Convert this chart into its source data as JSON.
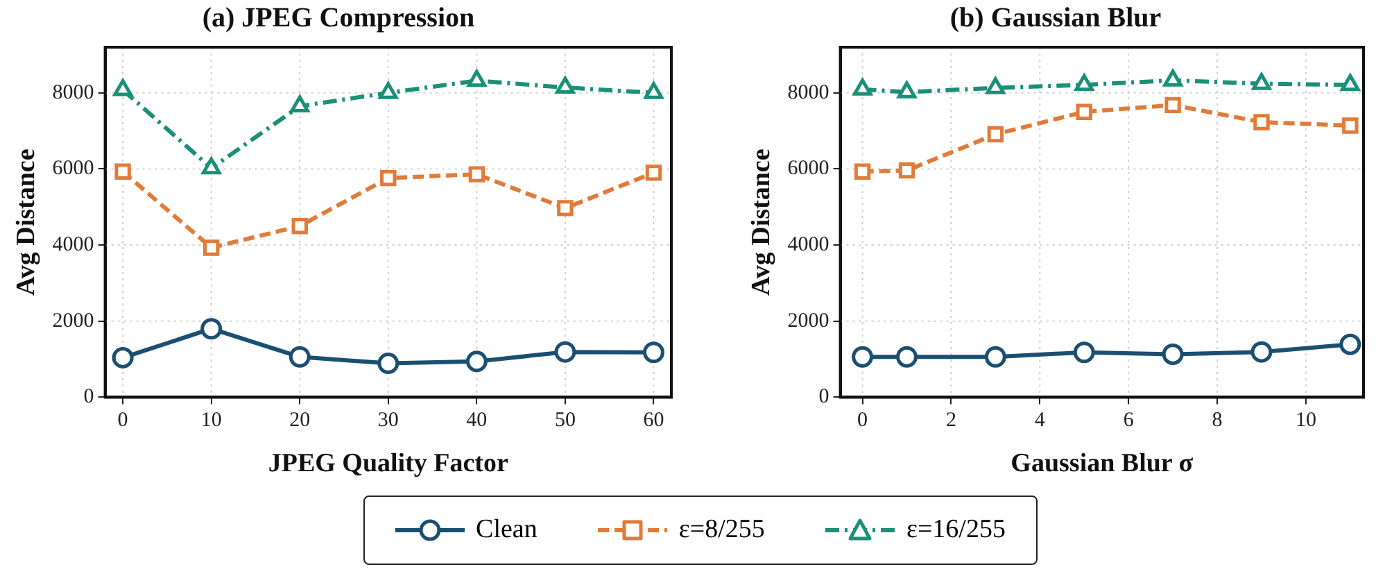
{
  "chart_data": [
    {
      "type": "line",
      "title": "(a) JPEG Compression",
      "xlabel": "JPEG Quality Factor",
      "ylabel": "Avg Distance",
      "xlim": [
        -2,
        62
      ],
      "xticks": [
        0,
        10,
        20,
        30,
        40,
        50,
        60
      ],
      "ylim": [
        0,
        9200
      ],
      "yticks": [
        0,
        2000,
        4000,
        6000,
        8000
      ],
      "grid": true,
      "legend": "bottom",
      "x": [
        0,
        10,
        20,
        30,
        40,
        50,
        60
      ],
      "series": [
        {
          "name": "Clean",
          "color": "#1b4f72",
          "marker": "circle",
          "line_style": "solid",
          "values": [
            1040,
            1800,
            1060,
            890,
            940,
            1190,
            1180
          ]
        },
        {
          "name": "ε=8/255",
          "color": "#e07b39",
          "marker": "square",
          "line_style": "dashed",
          "values": [
            5930,
            3930,
            4500,
            5760,
            5860,
            4970,
            5900
          ]
        },
        {
          "name": "ε=16/255",
          "color": "#1a9078",
          "marker": "triangle",
          "line_style": "dashdot",
          "values": [
            8080,
            6020,
            7650,
            8000,
            8320,
            8140,
            8000
          ]
        }
      ]
    },
    {
      "type": "line",
      "title": "(b) Gaussian Blur",
      "xlabel": "Gaussian Blur σ",
      "ylabel": "Avg Distance",
      "xlim": [
        -0.5,
        11.3
      ],
      "xticks": [
        0,
        2,
        4,
        6,
        8,
        10
      ],
      "ylim": [
        0,
        9200
      ],
      "yticks": [
        0,
        2000,
        4000,
        6000,
        8000
      ],
      "grid": true,
      "x": [
        0,
        1,
        3,
        5,
        7,
        9,
        11
      ],
      "series": [
        {
          "name": "Clean",
          "color": "#1b4f72",
          "marker": "circle",
          "line_style": "solid",
          "values": [
            1060,
            1060,
            1060,
            1180,
            1130,
            1190,
            1390
          ]
        },
        {
          "name": "ε=8/255",
          "color": "#e07b39",
          "marker": "square",
          "line_style": "dashed",
          "values": [
            5930,
            5960,
            6910,
            7500,
            7680,
            7230,
            7140
          ]
        },
        {
          "name": "ε=16/255",
          "color": "#1a9078",
          "marker": "triangle",
          "line_style": "dashdot",
          "values": [
            8090,
            8020,
            8130,
            8210,
            8330,
            8240,
            8210
          ]
        }
      ]
    }
  ]
}
